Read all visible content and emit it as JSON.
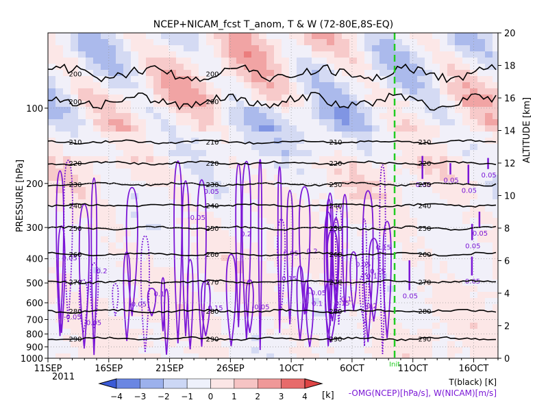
{
  "chart_data": {
    "type": "heatmap",
    "title": "NCEP+NICAM_fcst T_anom, T & W   (72-80E,8S-EQ)",
    "ylabel_left": "PRESSURE [hPa]",
    "ylabel_right": "ALTITUDE [km]",
    "x_axis": {
      "ticks": [
        "11SEP",
        "16SEP",
        "21SEP",
        "26SEP",
        "1OCT",
        "6OCT",
        "11OCT",
        "16OCT"
      ],
      "year_label": "2011",
      "range_days": [
        0,
        37
      ]
    },
    "y_left": {
      "ticks": [
        100,
        200,
        300,
        400,
        500,
        600,
        700,
        800,
        900,
        1000
      ],
      "scale": "log",
      "range": [
        1000,
        50
      ]
    },
    "y_right": {
      "ticks": [
        0,
        2,
        4,
        6,
        8,
        10,
        12,
        14,
        16,
        18,
        20
      ],
      "range": [
        0,
        20
      ]
    },
    "init_marker": {
      "label": "Init",
      "day": 28.5,
      "color": "#22cc22"
    },
    "colorbar": {
      "levels": [
        -4,
        -3,
        -2,
        -1,
        0,
        1,
        2,
        3,
        4
      ],
      "unit": "[k]",
      "colors": [
        "#3b5bd6",
        "#6a86e2",
        "#9cb1ec",
        "#ccd7f5",
        "#eef1fb",
        "#fbe6e6",
        "#f6c4c4",
        "#ef9898",
        "#e76a6a",
        "#de4545"
      ]
    },
    "legend": {
      "t_label": "T(black) [K]",
      "w_label": "-OMG(NCEP)[hPa/s], W(NICAM)[m/s]"
    },
    "temperature_contours": [
      {
        "label": "200",
        "km": 17.5
      },
      {
        "label": "200",
        "km": 15.8
      },
      {
        "label": "210",
        "km": 13.3
      },
      {
        "label": "220",
        "km": 12.0
      },
      {
        "label": "230",
        "km": 10.7
      },
      {
        "label": "240",
        "km": 9.4
      },
      {
        "label": "250",
        "km": 8.0
      },
      {
        "label": "260",
        "km": 6.4
      },
      {
        "label": "270",
        "km": 4.7
      },
      {
        "label": "280",
        "km": 2.9
      },
      {
        "label": "290",
        "km": 1.2
      }
    ],
    "w_contour_labels": [
      "0.05",
      "0.1",
      "0.15",
      "0.2",
      "-0.05"
    ]
  }
}
